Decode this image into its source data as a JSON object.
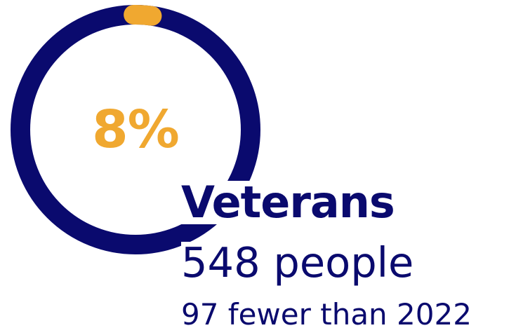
{
  "chart_data": {
    "type": "donut",
    "value_percent": 8,
    "value_label": "8%",
    "category": "Veterans",
    "count_text": "548 people",
    "change_text": "97 fewer than 2022",
    "colors": {
      "track": "#0a0a6e",
      "progress": "#f0a830",
      "text_primary": "#0a0a6e",
      "text_accent": "#f0a830"
    }
  }
}
